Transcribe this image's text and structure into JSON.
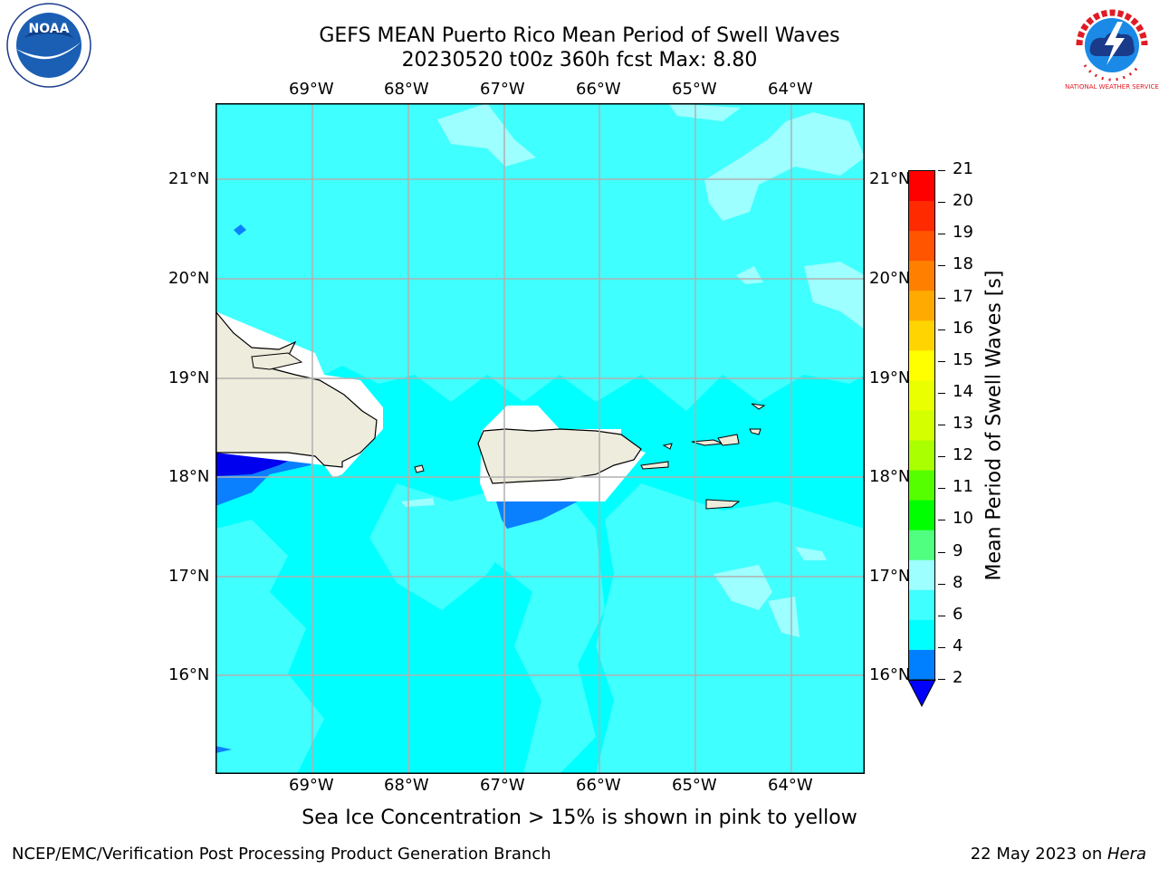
{
  "header": {
    "title_line1": "GEFS MEAN Puerto Rico Mean Period of Swell Waves",
    "title_line2": "20230520 t00z 360h fcst   Max: 8.80"
  },
  "logos": {
    "left_text": "NOAA",
    "right_text": "NATIONAL WEATHER SERVICE"
  },
  "map": {
    "lon_labels": [
      "69°W",
      "68°W",
      "67°W",
      "66°W",
      "65°W",
      "64°W"
    ],
    "lat_labels": [
      "21°N",
      "20°N",
      "19°N",
      "18°N",
      "17°N",
      "16°N"
    ],
    "colors": {
      "ocean_base": "#00ffff",
      "ocean_light": "#40ffff",
      "ocean_pale": "#9dffff",
      "land": "#eeecdc",
      "blue_mid": "#0a80ff",
      "blue_deep": "#0000ee",
      "grid": "#b0b0b0"
    }
  },
  "colorbar": {
    "label": "Mean Period of Swell Waves [s]",
    "ticks": [
      "21",
      "20",
      "19",
      "18",
      "17",
      "16",
      "15",
      "14",
      "13",
      "12",
      "11",
      "10",
      "9",
      "8",
      "6",
      "4",
      "2"
    ],
    "colors": [
      "#ff0000",
      "#ff2a00",
      "#ff5500",
      "#ff8000",
      "#ffaa00",
      "#ffd400",
      "#ffff00",
      "#eaff00",
      "#d4ff00",
      "#aaff00",
      "#55ff00",
      "#00ff00",
      "#50ff80",
      "#9dffff",
      "#40ffff",
      "#00ffff",
      "#0080ff",
      "#0000ff"
    ]
  },
  "footer": {
    "note": "Sea Ice Concentration > 15% is shown in pink to yellow",
    "left": "NCEP/EMC/Verification Post Processing Product Generation Branch",
    "right_date": "22 May 2023 on ",
    "right_host": "Hera"
  }
}
